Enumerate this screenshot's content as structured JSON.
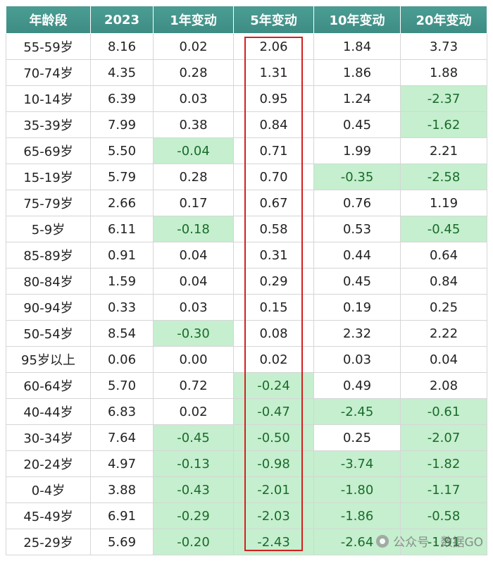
{
  "columns": [
    "年龄段",
    "2023",
    "1年变动",
    "5年变动",
    "10年变动",
    "20年变动"
  ],
  "rows": [
    [
      "55-59岁",
      "8.16",
      "0.02",
      "2.06",
      "1.84",
      "3.73"
    ],
    [
      "70-74岁",
      "4.35",
      "0.28",
      "1.31",
      "1.86",
      "1.88"
    ],
    [
      "10-14岁",
      "6.39",
      "0.03",
      "0.95",
      "1.24",
      "-2.37"
    ],
    [
      "35-39岁",
      "7.99",
      "0.38",
      "0.84",
      "0.45",
      "-1.62"
    ],
    [
      "65-69岁",
      "5.50",
      "-0.04",
      "0.71",
      "1.99",
      "2.21"
    ],
    [
      "15-19岁",
      "5.79",
      "0.28",
      "0.70",
      "-0.35",
      "-2.58"
    ],
    [
      "75-79岁",
      "2.66",
      "0.17",
      "0.67",
      "0.76",
      "1.19"
    ],
    [
      "5-9岁",
      "6.11",
      "-0.18",
      "0.58",
      "0.53",
      "-0.45"
    ],
    [
      "85-89岁",
      "0.91",
      "0.04",
      "0.31",
      "0.44",
      "0.64"
    ],
    [
      "80-84岁",
      "1.59",
      "0.04",
      "0.29",
      "0.45",
      "0.84"
    ],
    [
      "90-94岁",
      "0.33",
      "0.03",
      "0.15",
      "0.19",
      "0.25"
    ],
    [
      "50-54岁",
      "8.54",
      "-0.30",
      "0.08",
      "2.32",
      "2.22"
    ],
    [
      "95岁以上",
      "0.06",
      "0.00",
      "0.02",
      "0.03",
      "0.04"
    ],
    [
      "60-64岁",
      "5.70",
      "0.72",
      "-0.24",
      "0.49",
      "2.08"
    ],
    [
      "40-44岁",
      "6.83",
      "0.02",
      "-0.47",
      "-2.45",
      "-0.61"
    ],
    [
      "30-34岁",
      "7.64",
      "-0.45",
      "-0.50",
      "0.25",
      "-2.07"
    ],
    [
      "20-24岁",
      "4.97",
      "-0.13",
      "-0.98",
      "-3.74",
      "-1.82"
    ],
    [
      "0-4岁",
      "3.88",
      "-0.43",
      "-2.01",
      "-1.80",
      "-1.17"
    ],
    [
      "45-49岁",
      "6.91",
      "-0.29",
      "-2.03",
      "-1.86",
      "-0.58"
    ],
    [
      "25-29岁",
      "5.69",
      "-0.20",
      "-2.43",
      "-2.64",
      "-1.91"
    ]
  ],
  "watermark": {
    "text": "公众号 · 数据GO",
    "icon": "wechat-icon"
  },
  "colors": {
    "header_bg": "#4a9d93",
    "negative_bg": "#c5efce",
    "negative_text": "#1a6b2a",
    "highlight_border": "#d42020"
  }
}
